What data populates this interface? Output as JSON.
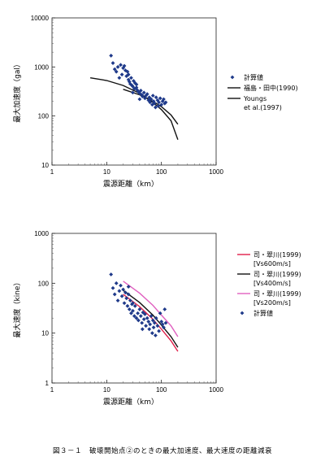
{
  "caption": "図３－１　破壊開始点②のときの最大加速度、最大速度の距離減衰",
  "chart_data": [
    {
      "type": "scatter",
      "xscale": "log",
      "yscale": "log",
      "xlim": [
        1,
        1000
      ],
      "ylim": [
        10,
        10000
      ],
      "xticks": [
        "1",
        "10",
        "100",
        "1000"
      ],
      "yticks": [
        "10",
        "100",
        "1000",
        "10000"
      ],
      "xlabel": "震源距離（km）",
      "ylabel": "最大加速度（gal）",
      "grid": false,
      "legend_position": "right",
      "series": [
        {
          "name": "計算値",
          "kind": "points",
          "color": "#1f3a8a",
          "points": [
            [
              12,
              1700
            ],
            [
              13,
              1200
            ],
            [
              14,
              900
            ],
            [
              15,
              800
            ],
            [
              16,
              1000
            ],
            [
              17,
              600
            ],
            [
              18,
              1100
            ],
            [
              19,
              700
            ],
            [
              20,
              950
            ],
            [
              21,
              1050
            ],
            [
              22,
              850
            ],
            [
              23,
              650
            ],
            [
              24,
              800
            ],
            [
              25,
              550
            ],
            [
              26,
              500
            ],
            [
              27,
              450
            ],
            [
              28,
              600
            ],
            [
              29,
              420
            ],
            [
              30,
              400
            ],
            [
              31,
              520
            ],
            [
              32,
              360
            ],
            [
              33,
              470
            ],
            [
              35,
              380
            ],
            [
              36,
              340
            ],
            [
              38,
              310
            ],
            [
              40,
              290
            ],
            [
              42,
              330
            ],
            [
              44,
              270
            ],
            [
              45,
              250
            ],
            [
              48,
              300
            ],
            [
              50,
              230
            ],
            [
              52,
              260
            ],
            [
              55,
              280
            ],
            [
              58,
              210
            ],
            [
              60,
              240
            ],
            [
              62,
              190
            ],
            [
              65,
              220
            ],
            [
              68,
              170
            ],
            [
              70,
              260
            ],
            [
              72,
              200
            ],
            [
              75,
              180
            ],
            [
              78,
              150
            ],
            [
              80,
              240
            ],
            [
              85,
              210
            ],
            [
              88,
              160
            ],
            [
              90,
              190
            ],
            [
              95,
              230
            ],
            [
              100,
              170
            ],
            [
              105,
              200
            ],
            [
              110,
              220
            ],
            [
              115,
              180
            ],
            [
              120,
              190
            ],
            [
              30,
              300
            ],
            [
              40,
              220
            ],
            [
              25,
              700
            ],
            [
              35,
              440
            ]
          ]
        },
        {
          "name": "福島・田中(1990)",
          "kind": "line",
          "color": "#111111",
          "points": [
            [
              5,
              600
            ],
            [
              10,
              530
            ],
            [
              20,
              420
            ],
            [
              40,
              290
            ],
            [
              70,
              190
            ],
            [
              100,
              135
            ],
            [
              150,
              80
            ],
            [
              200,
              33
            ]
          ]
        },
        {
          "name": "Youngs et al.(1997)",
          "kind": "line",
          "color": "#111111",
          "points": [
            [
              20,
              350
            ],
            [
              40,
              270
            ],
            [
              70,
              200
            ],
            [
              100,
              155
            ],
            [
              150,
              105
            ],
            [
              200,
              68
            ]
          ]
        }
      ]
    },
    {
      "type": "scatter",
      "xscale": "log",
      "yscale": "log",
      "xlim": [
        1,
        1000
      ],
      "ylim": [
        1,
        1000
      ],
      "xticks": [
        "1",
        "10",
        "100",
        "1000"
      ],
      "yticks": [
        "1",
        "10",
        "100",
        "1000"
      ],
      "xlabel": "震源距離（km）",
      "ylabel": "最大速度（kine）",
      "grid": false,
      "legend_position": "right",
      "series": [
        {
          "name": "司・翠川(1999) [Vs600m/s]",
          "kind": "line",
          "color": "#e0204a",
          "points": [
            [
              20,
              60
            ],
            [
              40,
              34
            ],
            [
              70,
              19
            ],
            [
              100,
              12
            ],
            [
              150,
              7
            ],
            [
              200,
              4.3
            ]
          ]
        },
        {
          "name": "司・翠川(1999) [Vs400m/s]",
          "kind": "line",
          "color": "#111111",
          "points": [
            [
              20,
              72
            ],
            [
              40,
              41
            ],
            [
              70,
              23
            ],
            [
              100,
              14.5
            ],
            [
              150,
              8.5
            ],
            [
              200,
              5.2
            ]
          ]
        },
        {
          "name": "司・翠川(1999) [Vs200m/s]",
          "kind": "line",
          "color": "#e060c0",
          "points": [
            [
              20,
              110
            ],
            [
              40,
              63
            ],
            [
              70,
              36
            ],
            [
              100,
              23
            ],
            [
              150,
              14
            ],
            [
              200,
              8.5
            ]
          ]
        },
        {
          "name": "計算値",
          "kind": "points",
          "color": "#1f3a8a",
          "points": [
            [
              12,
              150
            ],
            [
              13,
              80
            ],
            [
              14,
              60
            ],
            [
              15,
              100
            ],
            [
              16,
              45
            ],
            [
              17,
              70
            ],
            [
              18,
              90
            ],
            [
              19,
              55
            ],
            [
              20,
              75
            ],
            [
              21,
              40
            ],
            [
              22,
              65
            ],
            [
              23,
              50
            ],
            [
              24,
              35
            ],
            [
              25,
              60
            ],
            [
              26,
              30
            ],
            [
              27,
              45
            ],
            [
              28,
              25
            ],
            [
              29,
              38
            ],
            [
              30,
              28
            ],
            [
              32,
              22
            ],
            [
              33,
              35
            ],
            [
              35,
              20
            ],
            [
              37,
              25
            ],
            [
              38,
              18
            ],
            [
              40,
              30
            ],
            [
              42,
              22
            ],
            [
              44,
              16
            ],
            [
              46,
              26
            ],
            [
              48,
              19
            ],
            [
              50,
              24
            ],
            [
              52,
              14
            ],
            [
              55,
              20
            ],
            [
              58,
              17
            ],
            [
              60,
              12
            ],
            [
              62,
              15
            ],
            [
              65,
              22
            ],
            [
              68,
              10
            ],
            [
              70,
              18
            ],
            [
              72,
              13
            ],
            [
              75,
              16
            ],
            [
              78,
              9
            ],
            [
              80,
              20
            ],
            [
              85,
              14
            ],
            [
              90,
              11
            ],
            [
              95,
              25
            ],
            [
              100,
              17
            ],
            [
              105,
              15
            ],
            [
              110,
              13
            ],
            [
              115,
              30
            ],
            [
              120,
              16
            ],
            [
              30,
              40
            ],
            [
              45,
              12
            ],
            [
              25,
              85
            ]
          ]
        }
      ]
    }
  ]
}
